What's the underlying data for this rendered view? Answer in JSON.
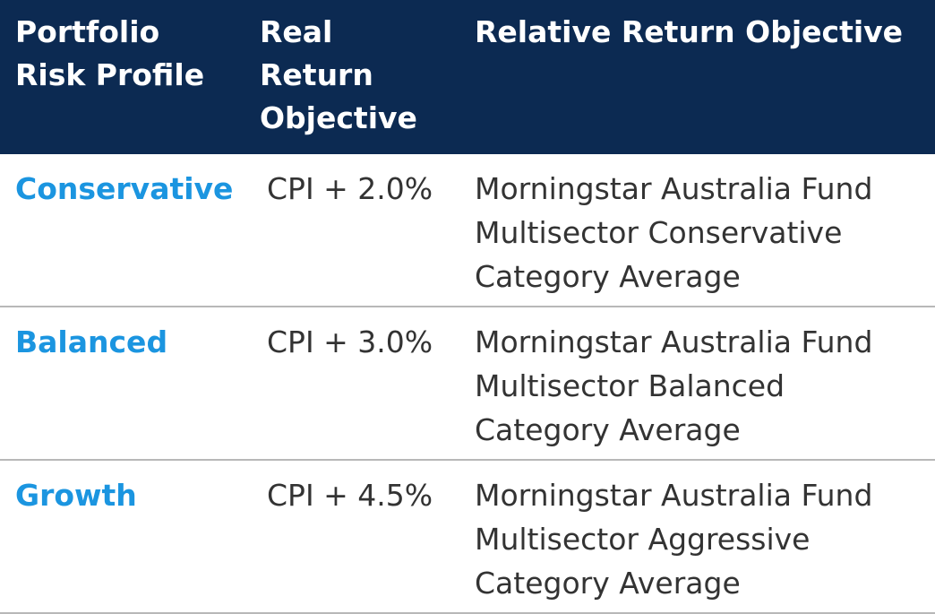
{
  "header": {
    "col1": "Portfolio Risk Profile",
    "col2": "Real Return Objective",
    "col3": "Relative Return Objective"
  },
  "rows": [
    {
      "profile": "Conservative",
      "real_return": "CPI + 2.0%",
      "relative_return": "Morningstar Australia Fund Multisector Conservative Category Average"
    },
    {
      "profile": "Balanced",
      "real_return": "CPI + 3.0%",
      "relative_return": "Morningstar Australia Fund Multisector Balanced Category Average"
    },
    {
      "profile": "Growth",
      "real_return": "CPI + 4.5%",
      "relative_return": "Morningstar Australia Fund Multisector Aggressive Category Average"
    }
  ],
  "colors": {
    "header_bg": "#0c2a52",
    "header_text": "#ffffff",
    "profile_text": "#1b95e0",
    "body_text": "#333333",
    "divider": "#b8b8b8"
  }
}
